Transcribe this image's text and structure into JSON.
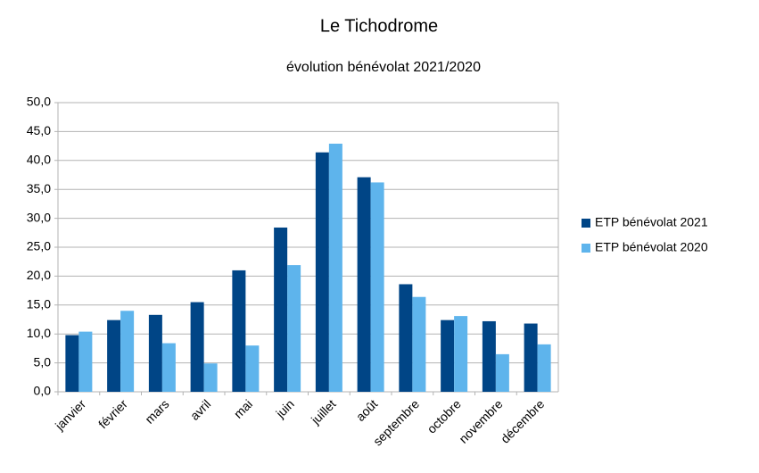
{
  "chart_data": {
    "type": "bar",
    "title": "Le Tichodrome",
    "subtitle": "évolution bénévolat 2021/2020",
    "categories": [
      "janvier",
      "février",
      "mars",
      "avril",
      "mai",
      "juin",
      "juillet",
      "août",
      "septembre",
      "octobre",
      "novembre",
      "décembre"
    ],
    "series": [
      {
        "name": "ETP bénévolat 2021",
        "color": "#004586",
        "values": [
          9.8,
          12.4,
          13.3,
          15.5,
          21.0,
          28.4,
          41.4,
          37.1,
          18.6,
          12.4,
          12.2,
          11.8
        ]
      },
      {
        "name": "ETP bénévolat 2020",
        "color": "#5eb4ec",
        "values": [
          10.4,
          14.0,
          8.4,
          4.9,
          8.0,
          21.9,
          42.9,
          36.2,
          16.4,
          13.1,
          6.5,
          8.2
        ]
      }
    ],
    "ylim": [
      0,
      50
    ],
    "yticks": [
      {
        "value": 0,
        "label": "0,0"
      },
      {
        "value": 5,
        "label": "5,0"
      },
      {
        "value": 10,
        "label": "10,0"
      },
      {
        "value": 15,
        "label": "15,0"
      },
      {
        "value": 20,
        "label": "20,0"
      },
      {
        "value": 25,
        "label": "25,0"
      },
      {
        "value": 30,
        "label": "30,0"
      },
      {
        "value": 35,
        "label": "35,0"
      },
      {
        "value": 40,
        "label": "40,0"
      },
      {
        "value": 45,
        "label": "45,0"
      },
      {
        "value": 50,
        "label": "50,0"
      }
    ],
    "grid": true,
    "legend": "right"
  }
}
